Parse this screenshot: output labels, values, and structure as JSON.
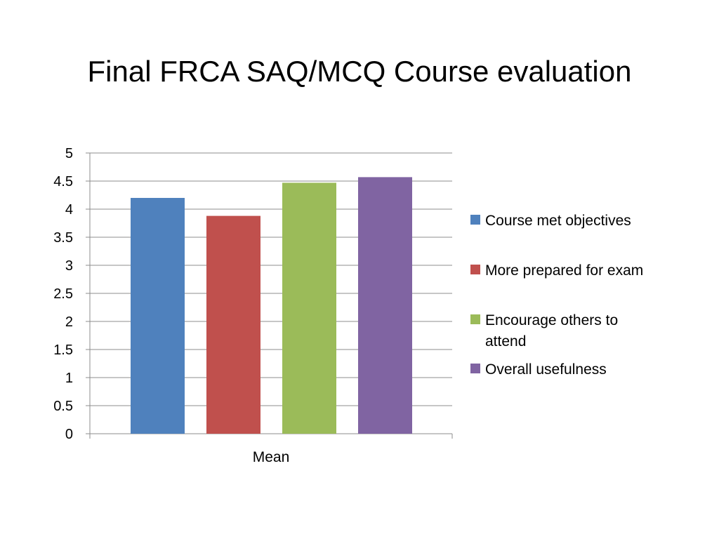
{
  "slide": {
    "title": "Final FRCA SAQ/MCQ Course evaluation"
  },
  "chart_data": {
    "type": "bar",
    "title": "",
    "xlabel": "",
    "ylabel": "",
    "categories": [
      "Mean"
    ],
    "ylim": [
      0,
      5
    ],
    "yticks": [
      0,
      0.5,
      1,
      1.5,
      2,
      2.5,
      3,
      3.5,
      4,
      4.5,
      5
    ],
    "ytick_labels": [
      "0",
      "0.5",
      "1",
      "1.5",
      "2",
      "2.5",
      "3",
      "3.5",
      "4",
      "4.5",
      "5"
    ],
    "grid": "horizontal",
    "legend": "right",
    "series": [
      {
        "name": "Course met objectives",
        "values": [
          4.2
        ],
        "color": "#4F81BD"
      },
      {
        "name": "More prepared for exam",
        "values": [
          3.88
        ],
        "color": "#C0504D"
      },
      {
        "name": "Encourage others to attend",
        "values": [
          4.47
        ],
        "color": "#9BBB59"
      },
      {
        "name": "Overall usefulness",
        "values": [
          4.57
        ],
        "color": "#8064A2"
      }
    ]
  }
}
